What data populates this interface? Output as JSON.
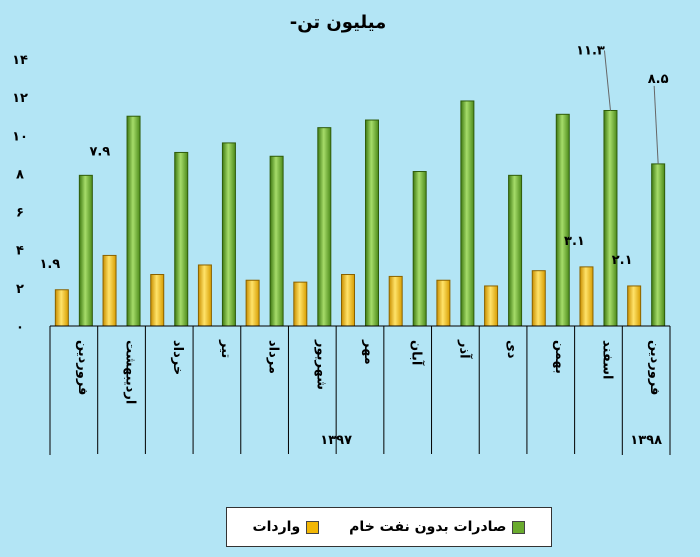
{
  "chart_data": {
    "type": "bar",
    "title": "-میلیون تن",
    "ylim": [
      0,
      14
    ],
    "yticks": [
      "۰",
      "۲",
      "۴",
      "۶",
      "۸",
      "۱۰",
      "۱۲",
      "۱۴"
    ],
    "categories": [
      "فروردین",
      "اردیبهشت",
      "خرداد",
      "تیر",
      "مرداد",
      "شهریور",
      "مهر",
      "آبان",
      "آذر",
      "دی",
      "بهمن",
      "اسفند",
      "فروردین"
    ],
    "groups": [
      {
        "label": "۱۳۹۷",
        "count": 12
      },
      {
        "label": "۱۳۹۸",
        "count": 1
      }
    ],
    "series": [
      {
        "name": "واردات",
        "color": "#f2b705",
        "values": [
          1.9,
          3.7,
          2.7,
          3.2,
          2.4,
          2.3,
          2.7,
          2.6,
          2.4,
          2.1,
          2.9,
          3.1,
          2.1
        ]
      },
      {
        "name": "صادرات بدون نفت خام",
        "color": "#6aab2e",
        "values": [
          7.9,
          11.0,
          9.1,
          9.6,
          8.9,
          10.4,
          10.8,
          8.1,
          11.8,
          7.9,
          11.1,
          11.3,
          8.5
        ]
      }
    ],
    "data_labels": [
      "۱.۹",
      "۷.۹",
      "۱۱.۳",
      "۳.۱",
      "۲.۱",
      "۸.۵"
    ],
    "legend_position": "bottom",
    "grid": false
  }
}
